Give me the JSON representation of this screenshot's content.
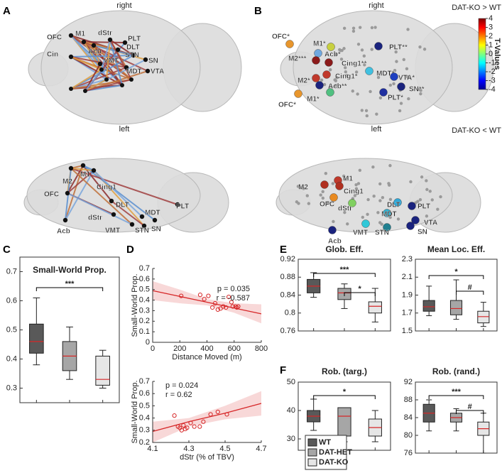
{
  "brain_panels": [
    {
      "label": "A",
      "views": [
        {
          "title": "right",
          "nodes": [
            "OFC",
            "M1",
            "dStr",
            "PLT",
            "Acb",
            "DLT",
            "STN",
            "SN",
            "Cin",
            "VMT",
            "MDT",
            "VTA"
          ]
        },
        {
          "title": "left",
          "nodes": [
            "M1",
            "M2",
            "Cing1",
            "OFC",
            "DLT",
            "PLT",
            "dStr",
            "MDT",
            "Acb",
            "VMT",
            "STN",
            "SN"
          ]
        }
      ]
    },
    {
      "label": "B",
      "views": [
        {
          "title": "right",
          "nodes": [
            "OFC*",
            "M1*",
            "Acb*",
            "M2***",
            "Cing1**",
            "PLT**",
            "MDT*",
            "VTA*",
            "SN**",
            "PLT*",
            "M2*",
            "Cing1*",
            "Acb**",
            "M1*",
            "OFC*"
          ]
        },
        {
          "title": "left",
          "nodes": [
            "M1",
            "M2",
            "Cing1",
            "OFC",
            "dStr",
            "DLT",
            "PLT",
            "MDT",
            "VTA",
            "SN",
            "VMT",
            "STN",
            "Acb"
          ]
        }
      ],
      "colorbar": {
        "label": "T-Values",
        "top_label": "DAT-KO > WT",
        "bottom_label": "DAT-KO < WT",
        "lim": [
          -4,
          4
        ],
        "ticks": [
          4,
          3,
          2,
          1,
          0,
          -1,
          -2,
          -3,
          -4
        ]
      }
    }
  ],
  "groups": [
    {
      "name": "WT",
      "color": "#595959"
    },
    {
      "name": "DAT-HET",
      "color": "#a6a6a6"
    },
    {
      "name": "DAT-KO",
      "color": "#e6e6e6"
    }
  ],
  "chart_data": [
    {
      "type": "box",
      "panel": "C",
      "title": "Small-World Prop.",
      "ylim": [
        0.25,
        0.75
      ],
      "yticks": [
        0.3,
        0.4,
        0.5,
        0.6,
        0.7
      ],
      "median_color": "#d62728",
      "boxes": [
        {
          "min": 0.38,
          "q1": 0.42,
          "median": 0.46,
          "q3": 0.52,
          "max": 0.61
        },
        {
          "min": 0.33,
          "q1": 0.36,
          "median": 0.41,
          "q3": 0.46,
          "max": 0.51
        },
        {
          "min": 0.3,
          "q1": 0.31,
          "median": 0.33,
          "q3": 0.41,
          "max": 0.43
        }
      ],
      "annotations": [
        "***"
      ]
    },
    {
      "type": "scatter",
      "panel": "D",
      "xlabel": "Distance Moved (m)",
      "ylabel": "Small-World Prop.",
      "color": "#d62728",
      "xlim": [
        0,
        800
      ],
      "xticks": [
        0,
        200,
        400,
        600,
        800
      ],
      "ylim": [
        0,
        0.7
      ],
      "yticks": [
        0,
        0.1,
        0.2,
        0.3,
        0.4,
        0.5,
        0.6,
        0.7
      ],
      "x": [
        210,
        350,
        380,
        410,
        440,
        460,
        480,
        500,
        520,
        540,
        560,
        580,
        590,
        610,
        620,
        630
      ],
      "values": [
        0.44,
        0.45,
        0.41,
        0.44,
        0.33,
        0.37,
        0.31,
        0.32,
        0.34,
        0.33,
        0.43,
        0.38,
        0.34,
        0.34,
        0.33,
        0.34
      ],
      "fit": {
        "x": [
          0,
          200,
          400,
          600,
          800
        ],
        "y": [
          0.49,
          0.435,
          0.38,
          0.325,
          0.27
        ],
        "upper": [
          0.58,
          0.5,
          0.41,
          0.37,
          0.36
        ],
        "lower": [
          0.4,
          0.37,
          0.35,
          0.28,
          0.18
        ]
      },
      "annotations": [
        "p = 0.035",
        "r = -0.587"
      ]
    },
    {
      "type": "scatter",
      "xlabel": "dStr (% of TBV)",
      "ylabel": "Small-World Prop.",
      "color": "#d62728",
      "xlim": [
        4.1,
        4.7
      ],
      "xticks": [
        4.1,
        4.3,
        4.5,
        4.7
      ],
      "ylim": [
        0.2,
        0.7
      ],
      "yticks": [
        0.2,
        0.3,
        0.4,
        0.5,
        0.6,
        0.7
      ],
      "x": [
        4.22,
        4.24,
        4.25,
        4.26,
        4.27,
        4.28,
        4.29,
        4.31,
        4.33,
        4.36,
        4.38,
        4.42,
        4.46,
        4.51
      ],
      "values": [
        0.42,
        0.33,
        0.32,
        0.3,
        0.34,
        0.31,
        0.32,
        0.36,
        0.33,
        0.33,
        0.37,
        0.43,
        0.45,
        0.43
      ],
      "fit": {
        "x": [
          4.1,
          4.3,
          4.5,
          4.7
        ],
        "y": [
          0.29,
          0.37,
          0.44,
          0.52
        ],
        "upper": [
          0.37,
          0.4,
          0.5,
          0.62
        ],
        "lower": [
          0.2,
          0.33,
          0.39,
          0.42
        ]
      },
      "annotations": [
        "p = 0.024",
        "r = 0.62"
      ]
    },
    {
      "type": "box",
      "panel": "E",
      "title": "Glob. Eff.",
      "ylim": [
        0.76,
        0.92
      ],
      "yticks": [
        0.76,
        0.8,
        0.84,
        0.88,
        0.92
      ],
      "median_color": "#d62728",
      "boxes": [
        {
          "min": 0.835,
          "q1": 0.845,
          "median": 0.86,
          "q3": 0.875,
          "max": 0.89
        },
        {
          "min": 0.81,
          "q1": 0.83,
          "median": 0.845,
          "q3": 0.855,
          "max": 0.865
        },
        {
          "min": 0.78,
          "q1": 0.8,
          "median": 0.815,
          "q3": 0.825,
          "max": 0.855
        }
      ],
      "annotations": [
        "***",
        "*"
      ]
    },
    {
      "type": "box",
      "title": "Mean Loc. Eff.",
      "ylim": [
        1.5,
        2.3
      ],
      "yticks": [
        1.5,
        1.7,
        1.9,
        2.1,
        2.3
      ],
      "median_color": "#d62728",
      "boxes": [
        {
          "min": 1.67,
          "q1": 1.72,
          "median": 1.77,
          "q3": 1.84,
          "max": 2.0
        },
        {
          "min": 1.63,
          "q1": 1.68,
          "median": 1.75,
          "q3": 1.84,
          "max": 2.07
        },
        {
          "min": 1.55,
          "q1": 1.59,
          "median": 1.66,
          "q3": 1.72,
          "max": 1.82
        }
      ],
      "annotations": [
        "*",
        "#"
      ]
    },
    {
      "type": "box",
      "panel": "F",
      "title": "Rob. (targ.)",
      "ylim": [
        26,
        50
      ],
      "yticks": [
        30,
        40,
        50
      ],
      "median_color": "#d62728",
      "boxes": [
        {
          "min": 33,
          "q1": 36,
          "median": 38,
          "q3": 40,
          "max": 44
        },
        {
          "min": 29,
          "q1": 31,
          "median": 38,
          "q3": 41,
          "max": 41
        },
        {
          "min": 29,
          "q1": 31,
          "median": 34,
          "q3": 37,
          "max": 40
        }
      ],
      "annotations": [
        "*"
      ],
      "legend": true
    },
    {
      "type": "box",
      "title": "Rob. (rand.)",
      "ylim": [
        76,
        92
      ],
      "yticks": [
        76,
        80,
        84,
        88,
        92
      ],
      "median_color": "#d62728",
      "boxes": [
        {
          "min": 81,
          "q1": 83,
          "median": 85,
          "q3": 87,
          "max": 88
        },
        {
          "min": 81,
          "q1": 83,
          "median": 84,
          "q3": 85,
          "max": 86
        },
        {
          "min": 76,
          "q1": 80,
          "median": 81.5,
          "q3": 83,
          "max": 85
        }
      ],
      "annotations": [
        "***",
        "#"
      ]
    }
  ]
}
